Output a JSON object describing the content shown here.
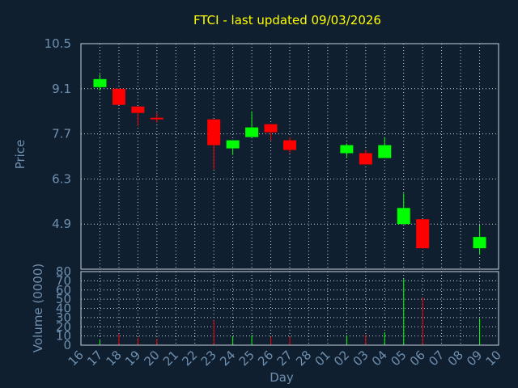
{
  "chart_data": {
    "type": "candlestick",
    "title": "FTCI - last updated 09/03/2026",
    "xlabel": "Day",
    "ylabel": "Price",
    "volume_label": "Volume (0000)",
    "grid": true,
    "colors": {
      "background": "#0f1f2f",
      "up": "#00ff00",
      "down": "#ff0000",
      "text": "#6f8fae",
      "title": "#ffff00",
      "grid": "#c8d2dc"
    },
    "x_ticks": [
      "16",
      "17",
      "18",
      "19",
      "20",
      "21",
      "22",
      "23",
      "24",
      "25",
      "26",
      "27",
      "28",
      "01",
      "02",
      "03",
      "04",
      "05",
      "06",
      "07",
      "08",
      "09",
      "10"
    ],
    "price_ticks": [
      "10.5",
      "9.1",
      "7.7",
      "6.3",
      "4.9"
    ],
    "price_range": [
      3.5,
      10.5
    ],
    "volume_ticks": [
      "80",
      "70",
      "60",
      "50",
      "40",
      "30",
      "20",
      "10",
      "0"
    ],
    "volume_range": [
      0,
      80
    ],
    "candles": [
      {
        "day": "17",
        "open": 9.15,
        "close": 9.4,
        "high": 9.55,
        "low": 9.05,
        "volume": 6
      },
      {
        "day": "18",
        "open": 9.1,
        "close": 8.6,
        "high": 9.1,
        "low": 8.6,
        "volume": 12
      },
      {
        "day": "19",
        "open": 8.55,
        "close": 8.35,
        "high": 8.55,
        "low": 7.95,
        "volume": 8
      },
      {
        "day": "20",
        "open": 8.2,
        "close": 8.15,
        "high": 8.35,
        "low": 8.05,
        "volume": 7
      },
      {
        "day": "23",
        "open": 8.15,
        "close": 7.35,
        "high": 8.15,
        "low": 6.6,
        "volume": 27
      },
      {
        "day": "24",
        "open": 7.25,
        "close": 7.5,
        "high": 7.5,
        "low": 7.05,
        "volume": 10
      },
      {
        "day": "25",
        "open": 7.6,
        "close": 7.9,
        "high": 8.4,
        "low": 7.6,
        "volume": 11
      },
      {
        "day": "26",
        "open": 8.0,
        "close": 7.75,
        "high": 8.0,
        "low": 7.5,
        "volume": 9
      },
      {
        "day": "27",
        "open": 7.5,
        "close": 7.2,
        "high": 7.6,
        "low": 7.1,
        "volume": 9
      },
      {
        "day": "02",
        "open": 7.1,
        "close": 7.35,
        "high": 7.4,
        "low": 6.95,
        "volume": 11
      },
      {
        "day": "03",
        "open": 7.1,
        "close": 6.75,
        "high": 7.2,
        "low": 6.75,
        "volume": 11
      },
      {
        "day": "04",
        "open": 6.95,
        "close": 7.35,
        "high": 7.6,
        "low": 6.95,
        "volume": 14
      },
      {
        "day": "05",
        "open": 4.9,
        "close": 5.4,
        "high": 5.85,
        "low": 4.9,
        "volume": 72
      },
      {
        "day": "06",
        "open": 5.05,
        "close": 4.15,
        "high": 5.05,
        "low": 4.15,
        "volume": 52
      },
      {
        "day": "09",
        "open": 4.15,
        "close": 4.5,
        "high": 4.85,
        "low": 3.95,
        "volume": 29
      }
    ]
  }
}
